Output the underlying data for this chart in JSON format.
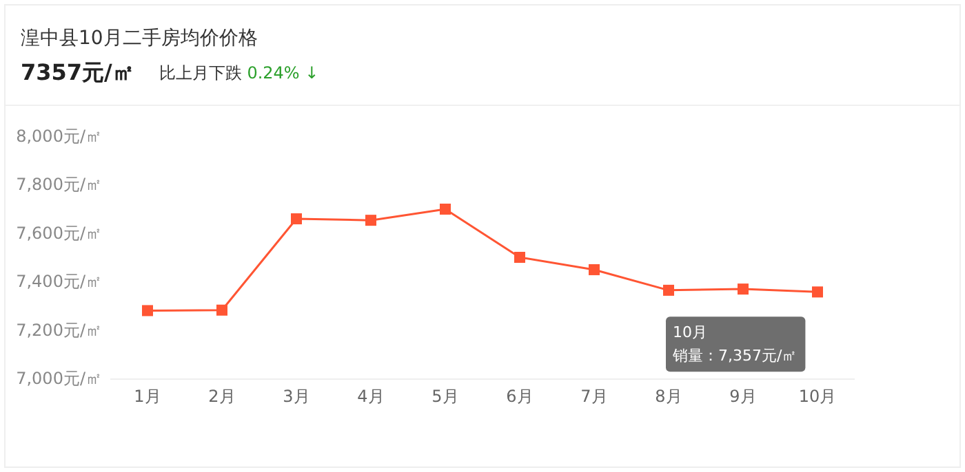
{
  "chart_data": {
    "type": "line",
    "title": "湟中县10月二手房均价价格",
    "subtitle": "7357元/㎡",
    "annotations": [
      "比上月下跌 0.24% ↓",
      "10月",
      "销量：7,357元/㎡"
    ],
    "categories": [
      "1月",
      "2月",
      "3月",
      "4月",
      "5月",
      "6月",
      "7月",
      "8月",
      "9月",
      "10月"
    ],
    "series": [
      {
        "color": "#ff5533",
        "values": [
          7280,
          7282,
          7659,
          7653,
          7699,
          7500,
          7449,
          7364,
          7369,
          7357
        ]
      }
    ],
    "ylim": [
      7000,
      8000
    ],
    "yticks": [
      {
        "value": 7000,
        "label": "7,000元/㎡"
      },
      {
        "value": 7200,
        "label": "7,200元/㎡"
      },
      {
        "value": 7400,
        "label": "7,400元/㎡"
      },
      {
        "value": 7600,
        "label": "7,600元/㎡"
      },
      {
        "value": 7800,
        "label": "7,800元/㎡"
      },
      {
        "value": 8000,
        "label": "8,000元/㎡"
      }
    ],
    "grid": false,
    "marker": "square",
    "line_style": "solid"
  }
}
